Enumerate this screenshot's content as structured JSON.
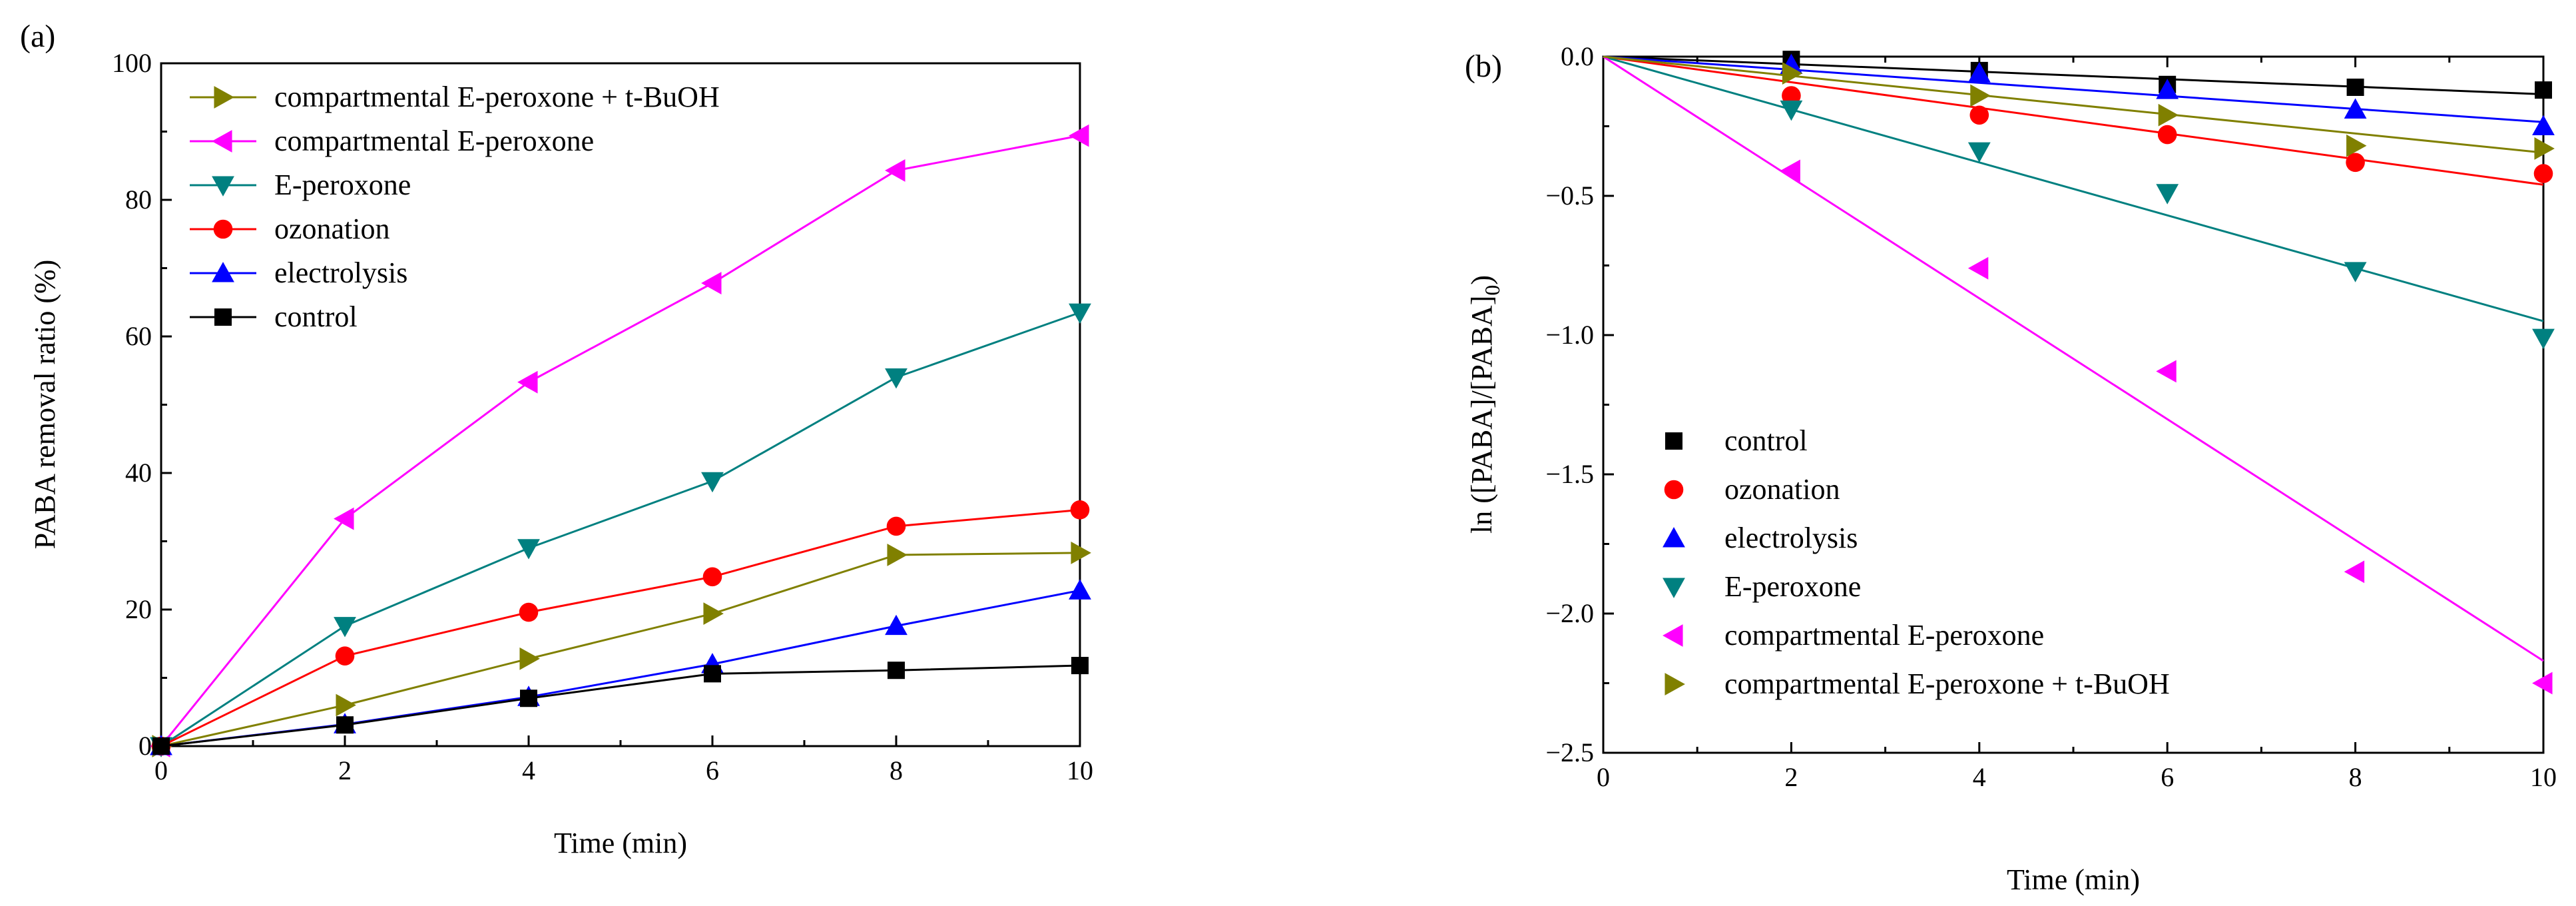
{
  "chart_data": [
    {
      "panel_label": "(a)",
      "type": "line",
      "xlabel": "Time (min)",
      "ylabel": "PABA removal ratio (%)",
      "xlim": [
        0,
        10
      ],
      "ylim": [
        0,
        100
      ],
      "x_ticks": [
        "0",
        "2",
        "4",
        "6",
        "8",
        "10"
      ],
      "y_ticks": [
        "0",
        "20",
        "40",
        "60",
        "80",
        "100"
      ],
      "x": [
        0,
        2,
        4,
        6,
        8,
        10
      ],
      "legend_position": "top-left",
      "series": [
        {
          "name": "compartmental E-peroxone + t-BuOH",
          "color": "#808000",
          "marker": "triangle-right",
          "values": [
            0,
            6.0,
            12.8,
            19.4,
            28.0,
            28.3
          ]
        },
        {
          "name": "compartmental E-peroxone",
          "color": "#ff00ff",
          "marker": "triangle-left",
          "values": [
            0,
            33.3,
            53.3,
            67.8,
            84.3,
            89.4
          ]
        },
        {
          "name": "E-peroxone",
          "color": "#008080",
          "marker": "triangle-down",
          "values": [
            0,
            17.6,
            29.0,
            38.8,
            54.0,
            63.5
          ]
        },
        {
          "name": "ozonation",
          "color": "#ff0000",
          "marker": "circle",
          "values": [
            0,
            13.2,
            19.6,
            24.8,
            32.2,
            34.6
          ]
        },
        {
          "name": "electrolysis",
          "color": "#0000ff",
          "marker": "triangle-up",
          "values": [
            0,
            3.2,
            7.2,
            12.0,
            17.6,
            22.8
          ]
        },
        {
          "name": "control",
          "color": "#000000",
          "marker": "square",
          "values": [
            0,
            3.1,
            7.0,
            10.6,
            11.1,
            11.8
          ]
        }
      ]
    },
    {
      "panel_label": "(b)",
      "type": "scatter",
      "xlabel": "Time (min)",
      "ylabel_main": "ln ([PABA]/[PABA]",
      "ylabel_sub": "0",
      "ylabel_close": ")",
      "xlim": [
        0,
        10
      ],
      "ylim": [
        -2.5,
        0
      ],
      "x_ticks": [
        "0",
        "2",
        "4",
        "6",
        "8",
        "10"
      ],
      "y_ticks": [
        "0.0",
        "−0.5",
        "−1.0",
        "−1.5",
        "−2.0",
        "−2.5"
      ],
      "x": [
        2,
        4,
        6,
        8,
        10
      ],
      "legend_position": "bottom-left",
      "series": [
        {
          "name": "control",
          "color": "#000000",
          "marker": "square",
          "values": [
            -0.01,
            -0.05,
            -0.1,
            -0.11,
            -0.12
          ],
          "fit_slope": -0.0135
        },
        {
          "name": "ozonation",
          "color": "#ff0000",
          "marker": "circle",
          "values": [
            -0.14,
            -0.21,
            -0.28,
            -0.38,
            -0.42
          ],
          "fit_slope": -0.046
        },
        {
          "name": "electrolysis",
          "color": "#0000ff",
          "marker": "triangle-up",
          "values": [
            -0.03,
            -0.06,
            -0.12,
            -0.19,
            -0.25
          ],
          "fit_slope": -0.0235
        },
        {
          "name": "E-peroxone",
          "color": "#008080",
          "marker": "triangle-down",
          "values": [
            -0.19,
            -0.34,
            -0.49,
            -0.77,
            -1.01
          ],
          "fit_slope": -0.095
        },
        {
          "name": "compartmental E-peroxone",
          "color": "#ff00ff",
          "marker": "triangle-left",
          "values": [
            -0.41,
            -0.76,
            -1.13,
            -1.85,
            -2.25
          ],
          "fit_slope": -0.217
        },
        {
          "name": "compartmental E-peroxone + t-BuOH",
          "color": "#808000",
          "marker": "triangle-right",
          "values": [
            -0.06,
            -0.14,
            -0.21,
            -0.32,
            -0.33
          ],
          "fit_slope": -0.0345
        }
      ]
    }
  ]
}
